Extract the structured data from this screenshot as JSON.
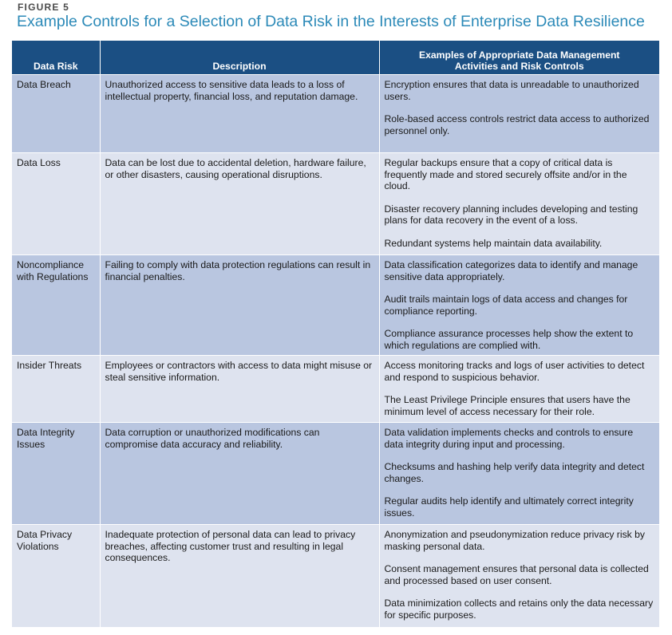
{
  "figure": {
    "label": "FIGURE 5",
    "title": "Example Controls for a Selection of Data Risk in the Interests of Enterprise Data Resilience"
  },
  "table": {
    "headers": {
      "risk": "Data Risk",
      "description": "Description",
      "controls_line1": "Examples of Appropriate Data Management",
      "controls_line2": "Activities and Risk Controls"
    },
    "rows": [
      {
        "risk": "Data Breach",
        "description": "Unauthorized access to sensitive data leads to a loss of intellectual property, financial loss, and reputation damage.",
        "controls": [
          "Encryption ensures that data is unreadable to unauthorized users.",
          "Role-based access controls restrict data access to authorized personnel only."
        ]
      },
      {
        "risk": "Data Loss",
        "description": "Data can be lost due to accidental deletion, hardware failure, or other disasters, causing operational disruptions.",
        "controls": [
          "Regular backups ensure that a copy of critical data is frequently made and stored securely offsite and/or in the cloud.",
          "Disaster recovery planning includes developing and testing plans for data recovery in the event of a loss.",
          "Redundant systems help maintain data availability."
        ]
      },
      {
        "risk": "Noncompliance with Regulations",
        "description": "Failing to comply with data protection regulations can result in financial penalties.",
        "controls": [
          "Data classification categorizes data to identify and manage sensitive data appropriately.",
          "Audit trails maintain logs of data access and changes for compliance reporting.",
          "Compliance assurance processes help show the extent to which regulations are complied with."
        ]
      },
      {
        "risk": "Insider Threats",
        "description": "Employees or contractors with access to data might misuse or steal sensitive information.",
        "controls": [
          "Access monitoring tracks and logs of user activities to detect and respond to suspicious behavior.",
          "The Least Privilege Principle ensures that users have the minimum level of access necessary for their role."
        ]
      },
      {
        "risk": "Data Integrity Issues",
        "description": "Data corruption or unauthorized modifications can compromise data accuracy and reliability.",
        "controls": [
          "Data validation implements checks and controls to ensure data integrity during input and processing.",
          "Checksums and hashing help verify data integrity and detect changes.",
          "Regular audits help identify and ultimately correct integrity issues."
        ]
      },
      {
        "risk": "Data Privacy Violations",
        "description": "Inadequate protection of personal data can lead to privacy breaches, affecting customer trust and resulting in legal consequences.",
        "controls": [
          "Anonymization and pseudonymization reduce privacy risk by masking personal data.",
          "Consent management ensures that personal data is collected and processed based on user consent.",
          "Data minimization collects and retains only the data necessary for specific purposes."
        ]
      }
    ]
  }
}
